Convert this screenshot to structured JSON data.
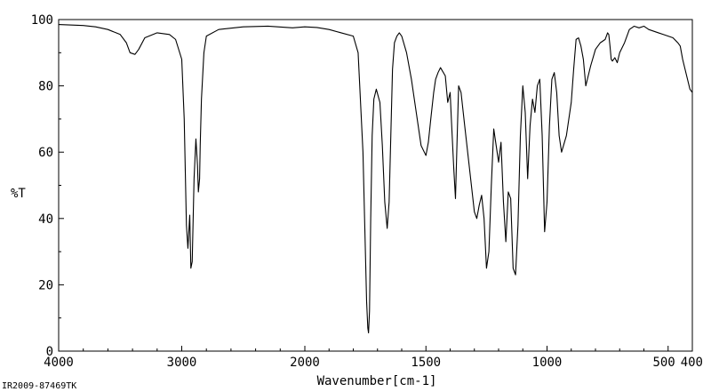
{
  "chart_data": {
    "type": "line",
    "xlabel": "Wavenumber[cm-1]",
    "ylabel": "%T",
    "footer": "IR2009-87469TK",
    "xlim": [
      4000,
      400
    ],
    "ylim": [
      0,
      100
    ],
    "x_ticks": [
      4000,
      3000,
      2000,
      1500,
      1000,
      500,
      400
    ],
    "x_tick_labels": [
      "4000",
      "3000",
      "2000",
      "1500",
      "1000",
      "500",
      "400"
    ],
    "y_ticks": [
      0,
      20,
      40,
      60,
      80,
      100
    ],
    "y_tick_labels": [
      "0",
      "20",
      "40",
      "60",
      "80",
      "100"
    ],
    "x_axis_breaks": [
      {
        "from": 4000,
        "to": 2000
      },
      {
        "from": 2000,
        "to": 400
      }
    ],
    "grid": false,
    "line_color": "#000000",
    "series": [
      {
        "x": [
          4000,
          3800,
          3700,
          3600,
          3500,
          3450,
          3420,
          3380,
          3350,
          3300,
          3200,
          3100,
          3050,
          3000,
          2980,
          2962,
          2950,
          2935,
          2926,
          2915,
          2900,
          2885,
          2872,
          2865,
          2855,
          2850,
          2840,
          2820,
          2800,
          2700,
          2500,
          2300,
          2100,
          2000,
          1950,
          1900,
          1850,
          1800,
          1780,
          1760,
          1750,
          1745,
          1740,
          1737,
          1733,
          1728,
          1722,
          1715,
          1705,
          1690,
          1680,
          1670,
          1660,
          1652,
          1645,
          1638,
          1630,
          1620,
          1610,
          1600,
          1580,
          1560,
          1540,
          1520,
          1500,
          1490,
          1480,
          1468,
          1460,
          1450,
          1440,
          1420,
          1410,
          1400,
          1395,
          1385,
          1378,
          1372,
          1365,
          1355,
          1340,
          1320,
          1300,
          1290,
          1280,
          1270,
          1260,
          1250,
          1240,
          1230,
          1220,
          1210,
          1200,
          1190,
          1180,
          1170,
          1160,
          1150,
          1140,
          1130,
          1120,
          1110,
          1100,
          1090,
          1080,
          1070,
          1060,
          1050,
          1040,
          1030,
          1020,
          1010,
          1000,
          990,
          980,
          970,
          960,
          950,
          940,
          920,
          900,
          890,
          880,
          870,
          860,
          850,
          840,
          820,
          800,
          780,
          760,
          750,
          745,
          740,
          735,
          730,
          720,
          710,
          700,
          680,
          660,
          640,
          620,
          600,
          580,
          560,
          540,
          520,
          500,
          480,
          460,
          450,
          440,
          430,
          420,
          410,
          400
        ],
        "values": [
          98.5,
          98.2,
          97.8,
          97.0,
          95.5,
          93.0,
          90.0,
          89.5,
          91.0,
          94.5,
          96.0,
          95.5,
          94.0,
          88.0,
          70.0,
          38.0,
          31.0,
          41.0,
          25.0,
          27.0,
          52.0,
          64.0,
          56.0,
          48.0,
          52.0,
          62.0,
          76.0,
          90.0,
          95.0,
          97.0,
          97.8,
          98.0,
          97.5,
          97.8,
          97.6,
          97.0,
          96.0,
          95.0,
          90.0,
          60.0,
          30.0,
          15.0,
          7.0,
          5.5,
          12.0,
          40.0,
          65.0,
          76.0,
          79.0,
          75.0,
          62.0,
          45.0,
          37.0,
          45.0,
          65.0,
          85.0,
          93.0,
          95.0,
          96.0,
          95.0,
          90.0,
          82.0,
          72.0,
          62.0,
          59.0,
          63.0,
          70.0,
          78.0,
          82.0,
          84.0,
          85.5,
          83.0,
          75.0,
          78.0,
          70.0,
          55.0,
          46.0,
          62.0,
          80.0,
          78.0,
          68.0,
          55.0,
          42.0,
          40.0,
          44.0,
          47.0,
          40.0,
          25.0,
          30.0,
          50.0,
          67.0,
          62.0,
          57.0,
          63.0,
          45.0,
          33.0,
          48.0,
          46.0,
          25.0,
          23.0,
          38.0,
          65.0,
          80.0,
          72.0,
          52.0,
          68.0,
          76.0,
          72.0,
          80.0,
          82.0,
          65.0,
          36.0,
          45.0,
          68.0,
          82.0,
          84.0,
          78.0,
          65.0,
          60.0,
          65.0,
          75.0,
          85.0,
          94.0,
          94.5,
          92.0,
          88.0,
          80.0,
          86.0,
          91.0,
          93.0,
          94.0,
          96.0,
          95.5,
          92.0,
          88.0,
          87.5,
          88.5,
          87.0,
          90.0,
          93.0,
          97.0,
          98.0,
          97.5,
          98.0,
          97.0,
          96.5,
          96.0,
          95.5,
          95.0,
          94.5,
          93.0,
          92.0,
          88.0,
          85.0,
          82.0,
          79.0,
          78.0
        ]
      }
    ]
  }
}
